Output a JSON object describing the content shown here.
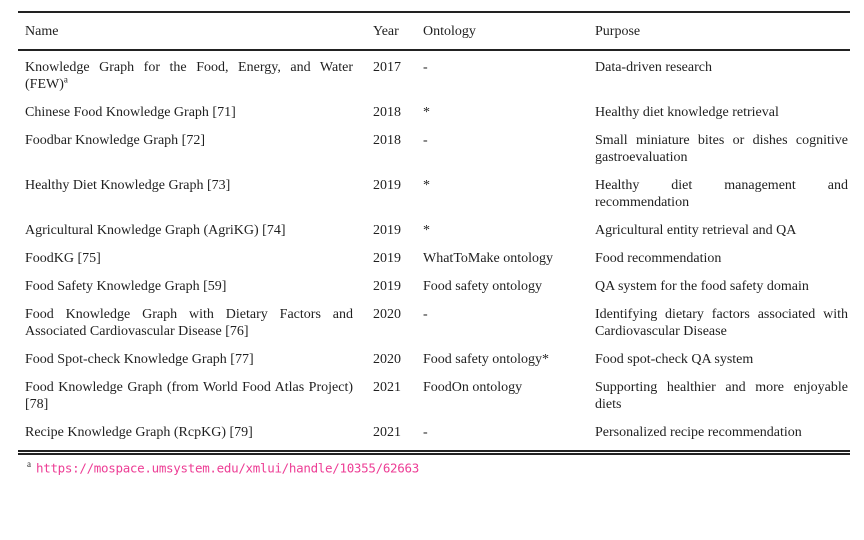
{
  "colors": {
    "text": "#1f1f1f",
    "rule": "#222222",
    "url_link": "#ED3D95",
    "background": "#ffffff"
  },
  "table": {
    "columns": [
      "Name",
      "Year",
      "Ontology",
      "Purpose"
    ],
    "rows": [
      {
        "name": "Knowledge Graph for the Food, Energy, and Water (FEW)",
        "name_sup": "a",
        "year": "2017",
        "ontology": "-",
        "purpose": "Data-driven research"
      },
      {
        "name": "Chinese Food Knowledge Graph [71]",
        "year": "2018",
        "ontology": "*",
        "purpose": "Healthy diet knowledge retrieval"
      },
      {
        "name": "Foodbar Knowledge Graph [72]",
        "year": "2018",
        "ontology": "-",
        "purpose": "Small miniature bites or dishes cognitive gastroevaluation"
      },
      {
        "name": "Healthy Diet Knowledge Graph [73]",
        "year": "2019",
        "ontology": "*",
        "purpose": "Healthy diet management and recommendation"
      },
      {
        "name": "Agricultural Knowledge Graph (AgriKG) [74]",
        "year": "2019",
        "ontology": "*",
        "purpose": "Agricultural entity retrieval and QA"
      },
      {
        "name": "FoodKG [75]",
        "year": "2019",
        "ontology": "WhatToMake ontology",
        "purpose": "Food recommendation"
      },
      {
        "name": "Food Safety Knowledge Graph [59]",
        "year": "2019",
        "ontology": "Food safety ontology",
        "purpose": "QA system for the food safety domain"
      },
      {
        "name": "Food Knowledge Graph with Dietary Factors and Associated Cardiovascular Disease [76]",
        "year": "2020",
        "ontology": "-",
        "purpose": "Identifying dietary factors associated with Cardiovascular Disease"
      },
      {
        "name": "Food Spot-check Knowledge Graph [77]",
        "year": "2020",
        "ontology": "Food safety ontology*",
        "purpose": "Food spot-check QA system"
      },
      {
        "name": "Food Knowledge Graph (from World Food Atlas Project) [78]",
        "year": "2021",
        "ontology": "FoodOn ontology",
        "purpose": "Supporting healthier and more enjoyable diets"
      },
      {
        "name": "Recipe Knowledge Graph (RcpKG) [79]",
        "year": "2021",
        "ontology": "-",
        "purpose": "Personalized recipe recommendation"
      }
    ],
    "footnote": {
      "marker": "a",
      "url": "https://mospace.umsystem.edu/xmlui/handle/10355/62663"
    }
  }
}
